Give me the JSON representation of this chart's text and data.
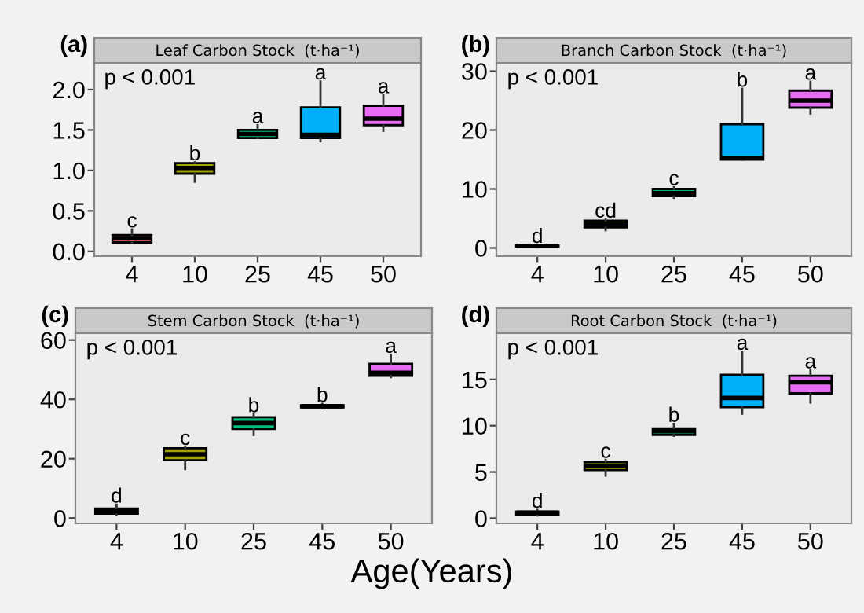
{
  "chart_data": [
    {
      "type": "box",
      "title": "Leaf Carbon Stock  (t·ha⁻¹)",
      "categories": [
        "4",
        "10",
        "25",
        "45",
        "50"
      ],
      "colors": [
        "#f8766d",
        "#a3a500",
        "#00bf7d",
        "#00b0f6",
        "#e76bf3"
      ],
      "boxes": [
        {
          "low": 0.1,
          "q1": 0.11,
          "median": 0.16,
          "q3": 0.2,
          "high": 0.27
        },
        {
          "low": 0.86,
          "q1": 0.96,
          "median": 1.03,
          "q3": 1.09,
          "high": 1.1
        },
        {
          "low": 1.4,
          "q1": 1.4,
          "median": 1.45,
          "q3": 1.5,
          "high": 1.56
        },
        {
          "low": 1.36,
          "q1": 1.4,
          "median": 1.44,
          "q3": 1.78,
          "high": 2.1
        },
        {
          "low": 1.49,
          "q1": 1.56,
          "median": 1.64,
          "q3": 1.8,
          "high": 1.93
        }
      ],
      "ylim": [
        -0.06,
        2.33
      ],
      "yticks": [
        {
          "value": 0,
          "label": "0.0"
        },
        0.5,
        {
          "value": 1,
          "label": "1.0"
        },
        1.5,
        {
          "value": 2,
          "label": "2.0"
        }
      ],
      "grid": false,
      "annotations": [
        "(a)",
        "p < 0.001",
        {
          "text": "c",
          "x": "4",
          "y": 0.27
        },
        {
          "text": "b",
          "x": "10",
          "y": 1.1
        },
        {
          "text": "a",
          "x": "25",
          "y": 1.56
        },
        {
          "text": "a",
          "x": "45",
          "y": 2.1
        },
        {
          "text": "a",
          "x": "50",
          "y": 1.93
        }
      ]
    },
    {
      "type": "box",
      "title": "Branch Carbon Stock  (t·ha⁻¹)",
      "categories": [
        "4",
        "10",
        "25",
        "45",
        "50"
      ],
      "colors": [
        "#f8766d",
        "#a3a500",
        "#00bf7d",
        "#00b0f6",
        "#e76bf3"
      ],
      "boxes": [
        {
          "low": 0.1,
          "q1": 0.2,
          "median": 0.3,
          "q3": 0.4,
          "high": 0.5
        },
        {
          "low": 3.0,
          "q1": 3.5,
          "median": 4.0,
          "q3": 4.6,
          "high": 4.8
        },
        {
          "low": 8.5,
          "q1": 8.8,
          "median": 9.3,
          "q3": 10.0,
          "high": 10.3
        },
        {
          "low": 15.0,
          "q1": 15.0,
          "median": 15.3,
          "q3": 21.0,
          "high": 27.0
        },
        {
          "low": 22.8,
          "q1": 23.8,
          "median": 25.0,
          "q3": 26.7,
          "high": 28.2
        }
      ],
      "ylim": [
        -1.4,
        31.4
      ],
      "yticks": [
        0,
        10,
        20,
        30
      ],
      "grid": false,
      "annotations": [
        "(b)",
        "p < 0.001",
        {
          "text": "d",
          "x": "4",
          "y": 0.5
        },
        {
          "text": "cd",
          "x": "10",
          "y": 4.8
        },
        {
          "text": "c",
          "x": "25",
          "y": 10.3
        },
        {
          "text": "b",
          "x": "45",
          "y": 27.0
        },
        {
          "text": "a",
          "x": "50",
          "y": 28.2
        }
      ]
    },
    {
      "type": "box",
      "title": "Stem Carbon Stock  (t·ha⁻¹)",
      "xlabel": "Age(Years)",
      "categories": [
        "4",
        "10",
        "25",
        "45",
        "50"
      ],
      "colors": [
        "#f8766d",
        "#a3a500",
        "#00bf7d",
        "#00b0f6",
        "#e76bf3"
      ],
      "boxes": [
        {
          "low": 1.2,
          "q1": 1.5,
          "median": 2.2,
          "q3": 3.2,
          "high": 4.5
        },
        {
          "low": 16.5,
          "q1": 19.5,
          "median": 21.5,
          "q3": 23.5,
          "high": 24
        },
        {
          "low": 28,
          "q1": 30,
          "median": 32,
          "q3": 34,
          "high": 35
        },
        {
          "low": 37,
          "q1": 37.3,
          "median": 37.7,
          "q3": 38,
          "high": 38.5
        },
        {
          "low": 47.5,
          "q1": 48,
          "median": 49,
          "q3": 52,
          "high": 55
        }
      ],
      "ylim": [
        -1.8,
        62.3
      ],
      "yticks": [
        0,
        20,
        40,
        60
      ],
      "grid": false,
      "annotations": [
        "(c)",
        "p < 0.001",
        {
          "text": "d",
          "x": "4",
          "y": 4.5
        },
        {
          "text": "c",
          "x": "10",
          "y": 24
        },
        {
          "text": "b",
          "x": "25",
          "y": 35
        },
        {
          "text": "b",
          "x": "45",
          "y": 38.5
        },
        {
          "text": "a",
          "x": "50",
          "y": 55
        }
      ]
    },
    {
      "type": "box",
      "title": "Root Carbon Stock  (t·ha⁻¹)",
      "categories": [
        "4",
        "10",
        "25",
        "45",
        "50"
      ],
      "colors": [
        "#f8766d",
        "#a3a500",
        "#00bf7d",
        "#00b0f6",
        "#e76bf3"
      ],
      "boxes": [
        {
          "low": 0.3,
          "q1": 0.4,
          "median": 0.6,
          "q3": 0.7,
          "high": 0.9
        },
        {
          "low": 4.6,
          "q1": 5.2,
          "median": 5.7,
          "q3": 6.1,
          "high": 6.3
        },
        {
          "low": 8.9,
          "q1": 9.0,
          "median": 9.4,
          "q3": 9.7,
          "high": 10.2
        },
        {
          "low": 11.3,
          "q1": 12.0,
          "median": 13.0,
          "q3": 15.5,
          "high": 18.0
        },
        {
          "low": 12.5,
          "q1": 13.5,
          "median": 14.7,
          "q3": 15.4,
          "high": 16.0
        }
      ],
      "ylim": [
        -0.56,
        20
      ],
      "yticks": [
        0,
        5,
        10,
        15
      ],
      "grid": false,
      "annotations": [
        "(d)",
        "p < 0.001",
        {
          "text": "d",
          "x": "4",
          "y": 0.9
        },
        {
          "text": "c",
          "x": "10",
          "y": 6.3
        },
        {
          "text": "b",
          "x": "25",
          "y": 10.2
        },
        {
          "text": "a",
          "x": "45",
          "y": 18.0
        },
        {
          "text": "a",
          "x": "50",
          "y": 16.0
        }
      ]
    }
  ]
}
